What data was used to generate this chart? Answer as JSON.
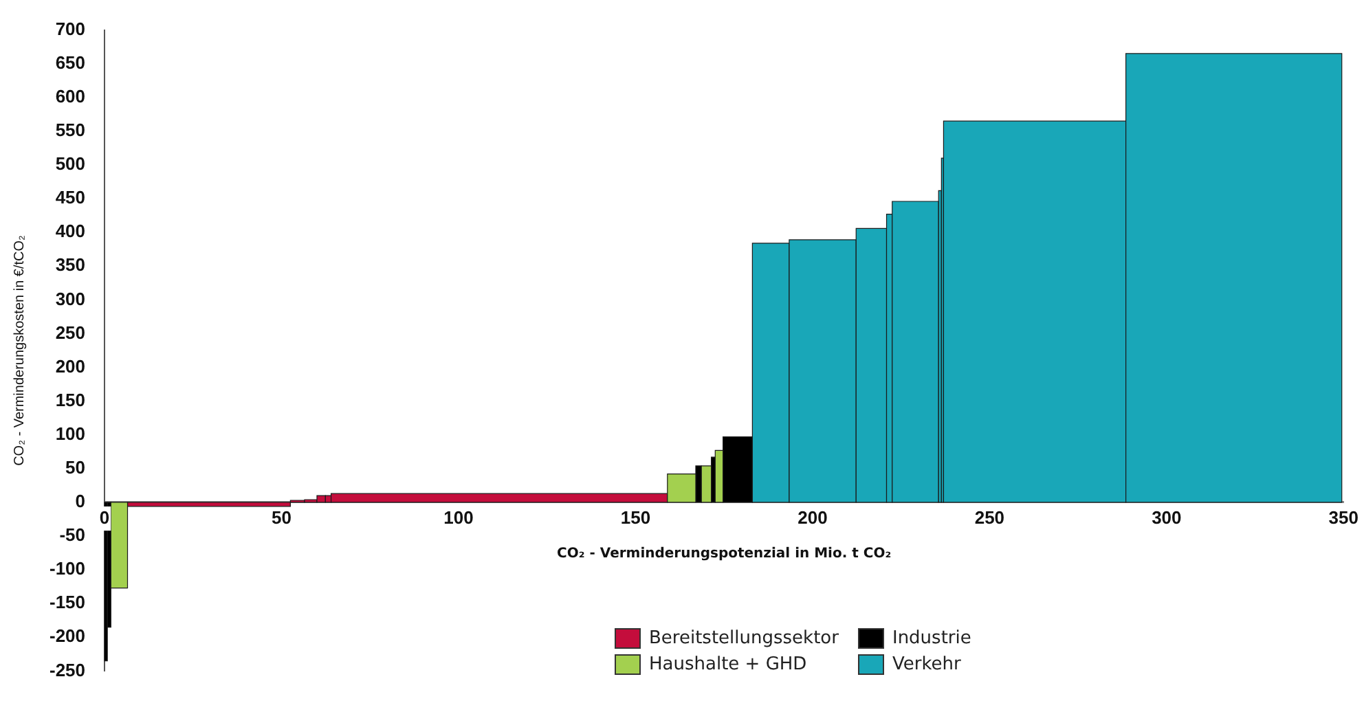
{
  "chart_data": {
    "type": "histogram",
    "xlabel": "CO₂ - Verminderungspotenzial in Mio. t CO₂",
    "ylabel": "CO₂ - Verminderungskosten in €/tCO₂",
    "bins": [
      0,
      0.8,
      1.8,
      6.5,
      52.5,
      56.5,
      60,
      62.4,
      64,
      159,
      167,
      168.6,
      171.4,
      172.5,
      174.7,
      183,
      193.4,
      212.3,
      220.9,
      222.5,
      235.6,
      236.4,
      237,
      288.5,
      349.5
    ],
    "series": [
      {
        "name": "Bereitstellungssektor",
        "color": "#c40d3c",
        "values": [
          null,
          null,
          null,
          -6,
          3,
          4,
          10,
          10,
          13,
          null,
          null,
          null,
          null,
          null,
          null,
          null,
          null,
          null,
          null,
          null,
          null,
          null,
          null,
          null
        ]
      },
      {
        "name": "Industrie",
        "color": "#000000",
        "values": [
          -235,
          -185,
          null,
          null,
          null,
          null,
          null,
          null,
          null,
          null,
          54,
          null,
          67,
          null,
          97,
          null,
          null,
          null,
          null,
          null,
          null,
          null,
          null,
          null
        ]
      },
      {
        "name": "Haushalte + GHD",
        "color": "#a3d04f",
        "values": [
          null,
          null,
          -127,
          null,
          null,
          null,
          null,
          null,
          null,
          42,
          null,
          54,
          null,
          77,
          null,
          null,
          null,
          null,
          null,
          null,
          null,
          null,
          null,
          null
        ]
      },
      {
        "name": "Verkehr",
        "color": "#19a7b8",
        "values": [
          null,
          null,
          null,
          null,
          null,
          null,
          null,
          null,
          null,
          null,
          null,
          null,
          null,
          null,
          null,
          384,
          389,
          406,
          427,
          446,
          462,
          510,
          565,
          665
        ]
      }
    ],
    "xlim": [
      0,
      350
    ],
    "xticks": [
      0,
      50,
      100,
      150,
      200,
      250,
      300,
      350
    ],
    "ylim": [
      -250,
      700
    ],
    "yticks": [
      -250,
      -200,
      -150,
      -100,
      -50,
      0,
      50,
      100,
      150,
      200,
      250,
      300,
      350,
      400,
      450,
      500,
      550,
      600,
      650,
      700
    ],
    "legend": "bottom"
  }
}
